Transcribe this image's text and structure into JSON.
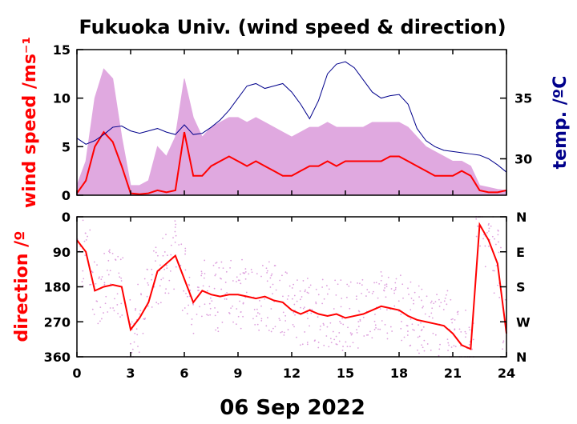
{
  "chart_data": [
    {
      "type": "line",
      "title": "Fukuoka Univ. (wind speed & direction)",
      "ylabel": "wind speed /ms⁻¹",
      "y2label": "temp. /ºC",
      "xlim": [
        0,
        24
      ],
      "ylim": [
        0,
        15
      ],
      "y2lim": [
        27,
        39
      ],
      "x_ticks": [
        "0",
        "3",
        "6",
        "9",
        "12",
        "15",
        "18",
        "21",
        "24"
      ],
      "y_ticks": [
        "0",
        "5",
        "10",
        "15"
      ],
      "y2_ticks": [
        "30",
        "35"
      ],
      "colors": {
        "gust": "#dda0dd",
        "wind": "#ff0000",
        "temp": "#00008b"
      },
      "series": [
        {
          "key": "gust",
          "x": [
            0,
            0.5,
            1,
            1.5,
            2,
            2.5,
            3,
            3.5,
            4,
            4.5,
            5,
            5.5,
            6,
            6.5,
            7,
            7.5,
            8,
            8.5,
            9,
            9.5,
            10,
            10.5,
            11,
            11.5,
            12,
            12.5,
            13,
            13.5,
            14,
            14.5,
            15,
            15.5,
            16,
            16.5,
            17,
            17.5,
            18,
            18.5,
            19,
            19.5,
            20,
            20.5,
            21,
            21.5,
            22,
            22.5,
            23,
            23.5,
            24
          ],
          "y": [
            1.0,
            3.5,
            10.0,
            13.0,
            12.0,
            6.0,
            1.0,
            1.0,
            1.5,
            5.0,
            4.0,
            6.0,
            12.0,
            8.0,
            6.0,
            7.0,
            7.5,
            8.0,
            8.0,
            7.5,
            8.0,
            7.5,
            7.0,
            6.5,
            6.0,
            6.5,
            7.0,
            7.0,
            7.5,
            7.0,
            7.0,
            7.0,
            7.0,
            7.5,
            7.5,
            7.5,
            7.5,
            7.0,
            6.0,
            5.0,
            4.5,
            4.0,
            3.5,
            3.5,
            3.0,
            1.0,
            0.8,
            0.6,
            0.5
          ]
        },
        {
          "key": "wind",
          "x": [
            0,
            0.5,
            1,
            1.5,
            2,
            2.5,
            3,
            3.5,
            4,
            4.5,
            5,
            5.5,
            6,
            6.5,
            7,
            7.5,
            8,
            8.5,
            9,
            9.5,
            10,
            10.5,
            11,
            11.5,
            12,
            12.5,
            13,
            13.5,
            14,
            14.5,
            15,
            15.5,
            16,
            16.5,
            17,
            17.5,
            18,
            18.5,
            19,
            19.5,
            20,
            20.5,
            21,
            21.5,
            22,
            22.5,
            23,
            23.5,
            24
          ],
          "y": [
            0.2,
            1.5,
            5.0,
            6.5,
            5.5,
            3.0,
            0.2,
            0.1,
            0.2,
            0.5,
            0.3,
            0.5,
            6.5,
            2.0,
            2.0,
            3.0,
            3.5,
            4.0,
            3.5,
            3.0,
            3.5,
            3.0,
            2.5,
            2.0,
            2.0,
            2.5,
            3.0,
            3.0,
            3.5,
            3.0,
            3.5,
            3.5,
            3.5,
            3.5,
            3.5,
            4.0,
            4.0,
            3.5,
            3.0,
            2.5,
            2.0,
            2.0,
            2.0,
            2.5,
            2.0,
            0.5,
            0.3,
            0.3,
            0.5
          ]
        },
        {
          "key": "temp",
          "x": [
            0,
            0.5,
            1,
            1.5,
            2,
            2.5,
            3,
            3.5,
            4,
            4.5,
            5,
            5.5,
            6,
            6.5,
            7,
            7.5,
            8,
            8.5,
            9,
            9.5,
            10,
            10.5,
            11,
            11.5,
            12,
            12.5,
            13,
            13.5,
            14,
            14.5,
            15,
            15.5,
            16,
            16.5,
            17,
            17.5,
            18,
            18.5,
            19,
            19.5,
            20,
            20.5,
            21,
            21.5,
            22,
            22.5,
            23,
            23.5,
            24
          ],
          "y": [
            31.7,
            31.2,
            31.5,
            32.0,
            32.6,
            32.7,
            32.3,
            32.1,
            32.3,
            32.5,
            32.2,
            32.0,
            32.8,
            32.0,
            32.1,
            32.6,
            33.2,
            34.0,
            35.0,
            36.0,
            36.2,
            35.8,
            36.0,
            36.2,
            35.5,
            34.5,
            33.3,
            34.8,
            37.0,
            37.8,
            38.0,
            37.5,
            36.5,
            35.5,
            35.0,
            35.2,
            35.3,
            34.5,
            32.5,
            31.5,
            31.0,
            30.7,
            30.6,
            30.5,
            30.4,
            30.3,
            30.0,
            29.5,
            28.9
          ]
        }
      ]
    },
    {
      "type": "scatter",
      "xlim": [
        0,
        24
      ],
      "ylim": [
        360,
        0
      ],
      "ylabel": "direction /º",
      "x_ticks": [
        "0",
        "3",
        "6",
        "9",
        "12",
        "15",
        "18",
        "21",
        "24"
      ],
      "y_ticks": [
        "0",
        "90",
        "180",
        "270",
        "360"
      ],
      "y2_ticks": [
        "N",
        "E",
        "S",
        "W",
        "N"
      ],
      "xlabel": "06 Sep 2022",
      "colors": {
        "scatter": "#dda0dd",
        "mean": "#ff0000"
      },
      "series": [
        {
          "key": "mean",
          "x": [
            0,
            0.5,
            1,
            1.5,
            2,
            2.5,
            3,
            3.5,
            4,
            4.5,
            5,
            5.5,
            6,
            6.5,
            7,
            7.5,
            8,
            8.5,
            9,
            9.5,
            10,
            10.5,
            11,
            11.5,
            12,
            12.5,
            13,
            13.5,
            14,
            14.5,
            15,
            15.5,
            16,
            16.5,
            17,
            17.5,
            18,
            18.5,
            19,
            19.5,
            20,
            20.5,
            21,
            21.5,
            22,
            22.5,
            23,
            23.5,
            24
          ],
          "y": [
            60,
            90,
            190,
            180,
            175,
            180,
            290,
            260,
            220,
            140,
            120,
            100,
            160,
            220,
            190,
            200,
            205,
            200,
            200,
            205,
            210,
            205,
            215,
            220,
            240,
            250,
            240,
            250,
            255,
            250,
            260,
            255,
            250,
            240,
            230,
            235,
            240,
            255,
            265,
            270,
            275,
            280,
            300,
            330,
            340,
            20,
            60,
            120,
            300
          ]
        }
      ]
    }
  ]
}
